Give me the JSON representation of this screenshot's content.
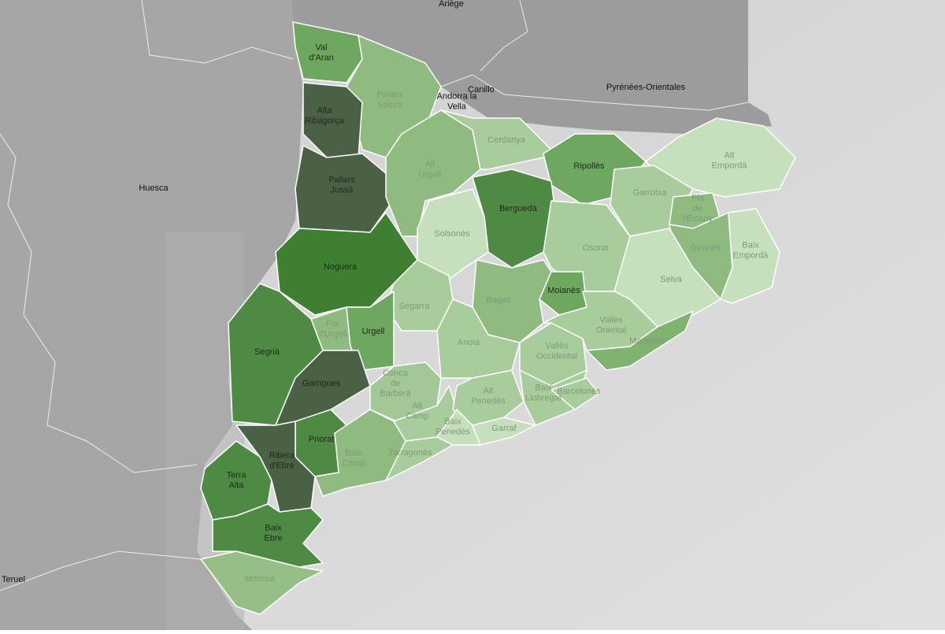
{
  "places": [
    {
      "label": [
        "Ariège"
      ]
    },
    {
      "label": [
        "Canillo"
      ]
    },
    {
      "label": [
        "Andorra la",
        "Vella"
      ]
    },
    {
      "label": [
        "Pyrénées-Orientales"
      ]
    },
    {
      "label": [
        "Huesca"
      ]
    },
    {
      "label": [
        "Teruel"
      ]
    }
  ],
  "regions": [
    {
      "label": [
        "Val",
        "d'Aran"
      ]
    },
    {
      "label": [
        "Pallars",
        "Sobirà"
      ]
    },
    {
      "label": [
        "Alta",
        "Ribagorça"
      ]
    },
    {
      "label": [
        "Pallars",
        "Jussà"
      ]
    },
    {
      "label": [
        "Alt",
        "Urgell"
      ]
    },
    {
      "label": [
        "Cerdanya"
      ]
    },
    {
      "label": [
        "Ripollès"
      ]
    },
    {
      "label": [
        "Alt",
        "Empordà"
      ]
    },
    {
      "label": [
        "Garrotxa"
      ]
    },
    {
      "label": [
        "Pla",
        "de",
        "l'Estany"
      ]
    },
    {
      "label": [
        "Gironès"
      ]
    },
    {
      "label": [
        "Baix",
        "Empordà"
      ]
    },
    {
      "label": [
        "Berguedà"
      ]
    },
    {
      "label": [
        "Solsonès"
      ]
    },
    {
      "label": [
        "Osona"
      ]
    },
    {
      "label": [
        "Selva"
      ]
    },
    {
      "label": [
        "Noguera"
      ]
    },
    {
      "label": [
        "Moianès"
      ]
    },
    {
      "label": [
        "Bages"
      ]
    },
    {
      "label": [
        "Segarra"
      ]
    },
    {
      "label": [
        "Pla",
        "d'Urgell"
      ]
    },
    {
      "label": [
        "Urgell"
      ]
    },
    {
      "label": [
        "Segrià"
      ]
    },
    {
      "label": [
        "Garrigues"
      ]
    },
    {
      "label": [
        "Anoia"
      ]
    },
    {
      "label": [
        "Vallès",
        "Occidental"
      ]
    },
    {
      "label": [
        "Vallès",
        "Oriental"
      ]
    },
    {
      "label": [
        "Maresme"
      ]
    },
    {
      "label": [
        "Conca",
        "de",
        "Barberà"
      ]
    },
    {
      "label": [
        "Alt",
        "Camp"
      ]
    },
    {
      "label": [
        "Alt",
        "Penedès"
      ]
    },
    {
      "label": [
        "Baix",
        "Llobregat"
      ]
    },
    {
      "label": [
        "Barcelonès"
      ]
    },
    {
      "label": [
        "Baix",
        "Penedès"
      ]
    },
    {
      "label": [
        "Garraf"
      ]
    },
    {
      "label": [
        "Priorat"
      ]
    },
    {
      "label": [
        "Ribera",
        "d'Ebre"
      ]
    },
    {
      "label": [
        "Terra",
        "Alta"
      ]
    },
    {
      "label": [
        "Baix",
        "Camp"
      ]
    },
    {
      "label": [
        "Tarragonès"
      ]
    },
    {
      "label": [
        "Baix",
        "Ebre"
      ]
    },
    {
      "label": [
        "Montsià"
      ]
    }
  ]
}
